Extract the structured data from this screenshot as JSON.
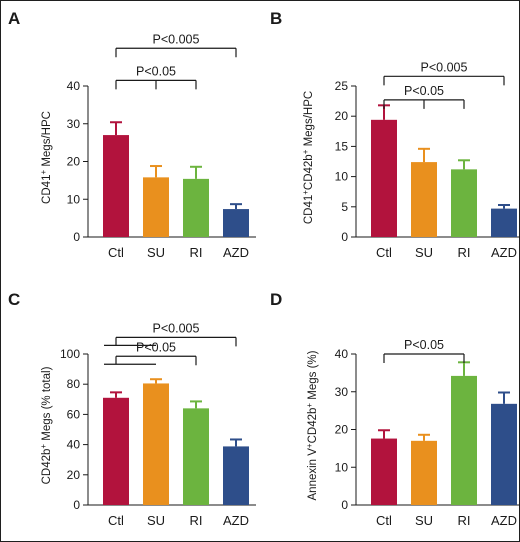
{
  "chart_data": [
    {
      "type": "bar",
      "panel": "A",
      "categories": [
        "Ctl",
        "SU",
        "RI",
        "AZD"
      ],
      "values": [
        27,
        15.8,
        15.4,
        7.4
      ],
      "errors": [
        3.4,
        3.0,
        3.2,
        1.3
      ],
      "colors": [
        "#b2133d",
        "#e9901e",
        "#6cb43f",
        "#2e4e8a"
      ],
      "ylabel": "CD41⁺ Megs/HPC",
      "ylim": [
        0,
        40
      ],
      "yticks": [
        0,
        10,
        20,
        30,
        40
      ],
      "brackets": [
        {
          "label": "P<0.005",
          "from": 0,
          "to": [
            3
          ],
          "level": 50
        },
        {
          "label": "P<0.05",
          "from": 0,
          "to": [
            1,
            2
          ],
          "level": 41.5
        }
      ]
    },
    {
      "type": "bar",
      "panel": "B",
      "categories": [
        "Ctl",
        "SU",
        "RI",
        "AZD"
      ],
      "values": [
        19.4,
        12.4,
        11.2,
        4.7
      ],
      "errors": [
        2.4,
        2.2,
        1.5,
        0.6
      ],
      "colors": [
        "#b2133d",
        "#e9901e",
        "#6cb43f",
        "#2e4e8a"
      ],
      "ylabel": "CD41⁺CD42b⁺ Megs/HPC",
      "ylim": [
        0,
        25
      ],
      "yticks": [
        0,
        5,
        10,
        15,
        20,
        25
      ],
      "brackets": [
        {
          "label": "P<0.005",
          "from": 0,
          "to": [
            3
          ],
          "level": 26.6
        },
        {
          "label": "P<0.05",
          "from": 0,
          "to": [
            1,
            2
          ],
          "level": 22.7
        }
      ]
    },
    {
      "type": "bar",
      "panel": "C",
      "categories": [
        "Ctl",
        "SU",
        "RI",
        "AZD"
      ],
      "values": [
        71,
        80.5,
        64,
        38.8
      ],
      "errors": [
        3.6,
        2.8,
        4.6,
        4.6
      ],
      "colors": [
        "#b2133d",
        "#e9901e",
        "#6cb43f",
        "#2e4e8a"
      ],
      "ylabel": "CD42b⁺ Megs (% total)",
      "ylim": [
        0,
        100
      ],
      "yticks": [
        0,
        20,
        40,
        60,
        80,
        100
      ],
      "brackets": [
        {
          "label": "P<0.005",
          "from": [
            0,
            1
          ],
          "to": [
            3
          ],
          "level": 111
        },
        {
          "label": "P<0.05",
          "from": [
            0,
            1
          ],
          "to": [
            2
          ],
          "level": 98.5
        }
      ]
    },
    {
      "type": "bar",
      "panel": "D",
      "categories": [
        "Ctl",
        "SU",
        "RI",
        "AZD"
      ],
      "values": [
        17.6,
        17,
        34.2,
        26.8
      ],
      "errors": [
        2.2,
        1.6,
        3.6,
        3.0
      ],
      "colors": [
        "#b2133d",
        "#e9901e",
        "#6cb43f",
        "#2e4e8a"
      ],
      "ylabel": "Annexin V⁺CD42b⁺ Megs (%)",
      "ylim": [
        0,
        40
      ],
      "yticks": [
        0,
        10,
        20,
        30,
        40
      ],
      "brackets": [
        {
          "label": "P<0.05",
          "from": 0,
          "to": [
            2
          ],
          "level": 40
        }
      ]
    }
  ]
}
